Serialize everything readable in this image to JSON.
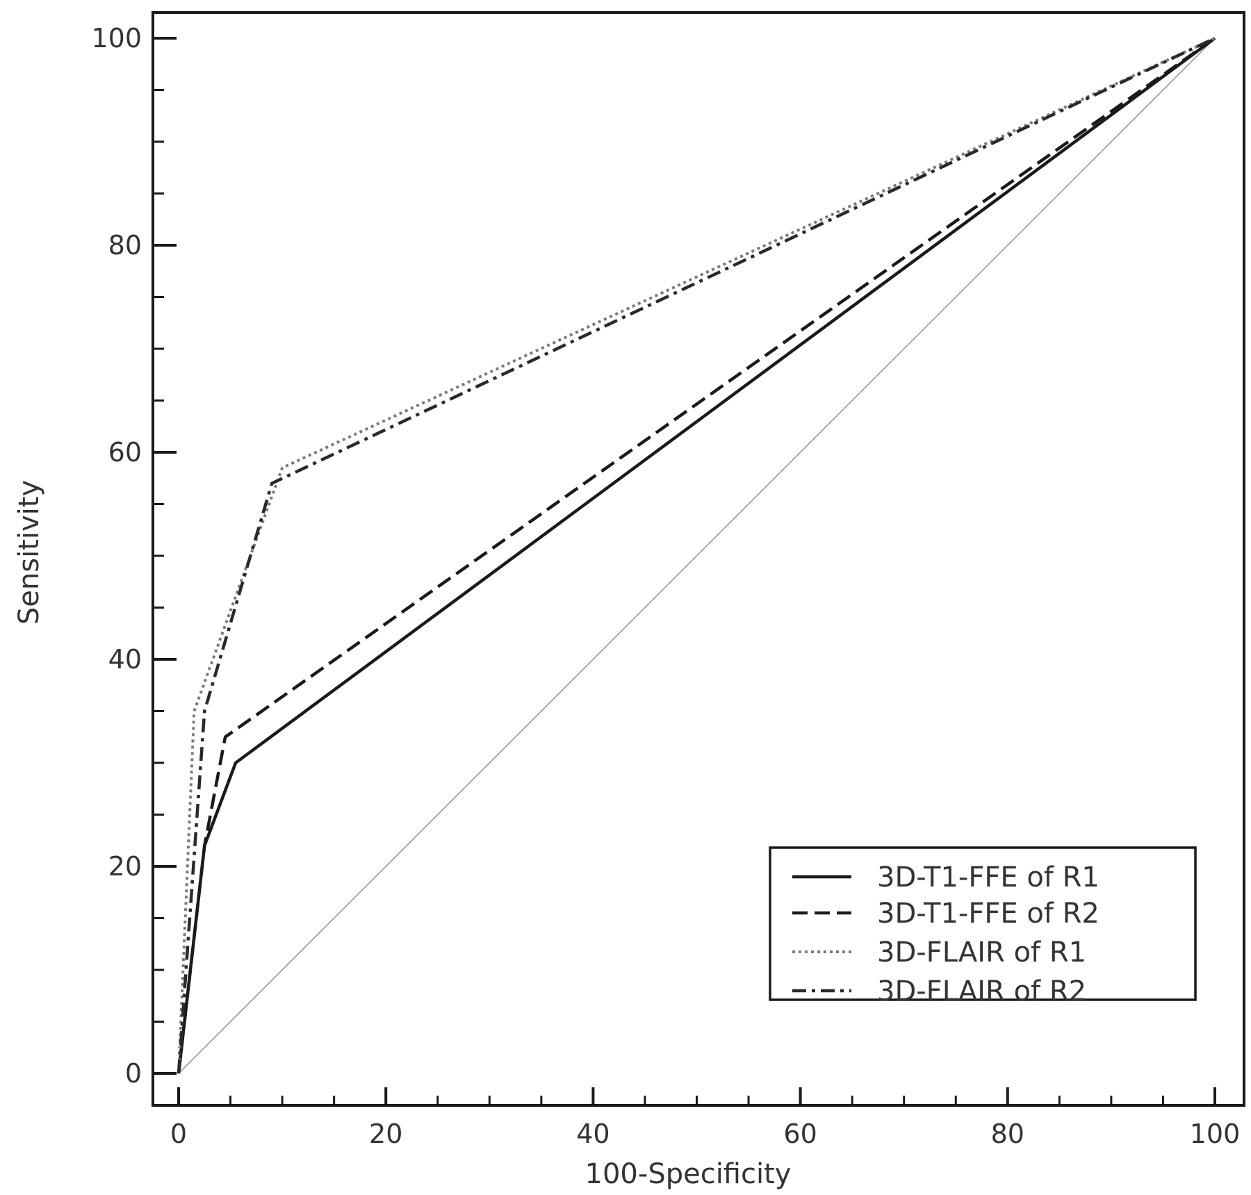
{
  "chart_data": {
    "type": "line",
    "title": "",
    "xlabel": "100-Specificity",
    "ylabel": "Sensitivity",
    "xlim": [
      0,
      100
    ],
    "ylim": [
      0,
      100
    ],
    "x_ticks": [
      0,
      20,
      40,
      60,
      80,
      100
    ],
    "y_ticks": [
      0,
      20,
      40,
      60,
      80,
      100
    ],
    "x_minor_step": 5,
    "y_minor_step": 5,
    "grid": false,
    "legend_position": "bottom-right",
    "reference_line": {
      "x": [
        0,
        100
      ],
      "y": [
        0,
        100
      ],
      "color": "#9a9a9a"
    },
    "series": [
      {
        "name": "3D-T1-FFE of R1",
        "style": "solid",
        "color": "#1a1a1a",
        "x": [
          0,
          2.5,
          5.5,
          100
        ],
        "y": [
          0,
          22,
          30,
          100
        ]
      },
      {
        "name": "3D-T1-FFE of R2",
        "style": "dashed",
        "color": "#1a1a1a",
        "x": [
          0,
          2.5,
          4.5,
          100
        ],
        "y": [
          0,
          22,
          32.5,
          100
        ]
      },
      {
        "name": "3D-FLAIR of R1",
        "style": "dotted",
        "color": "#7a7a7a",
        "x": [
          0,
          1.5,
          10,
          100
        ],
        "y": [
          0,
          35,
          58.5,
          100
        ]
      },
      {
        "name": "3D-FLAIR of R2",
        "style": "dashdot",
        "color": "#2a2a2a",
        "x": [
          0,
          2.5,
          9,
          100
        ],
        "y": [
          0,
          35,
          57,
          100
        ]
      }
    ]
  }
}
